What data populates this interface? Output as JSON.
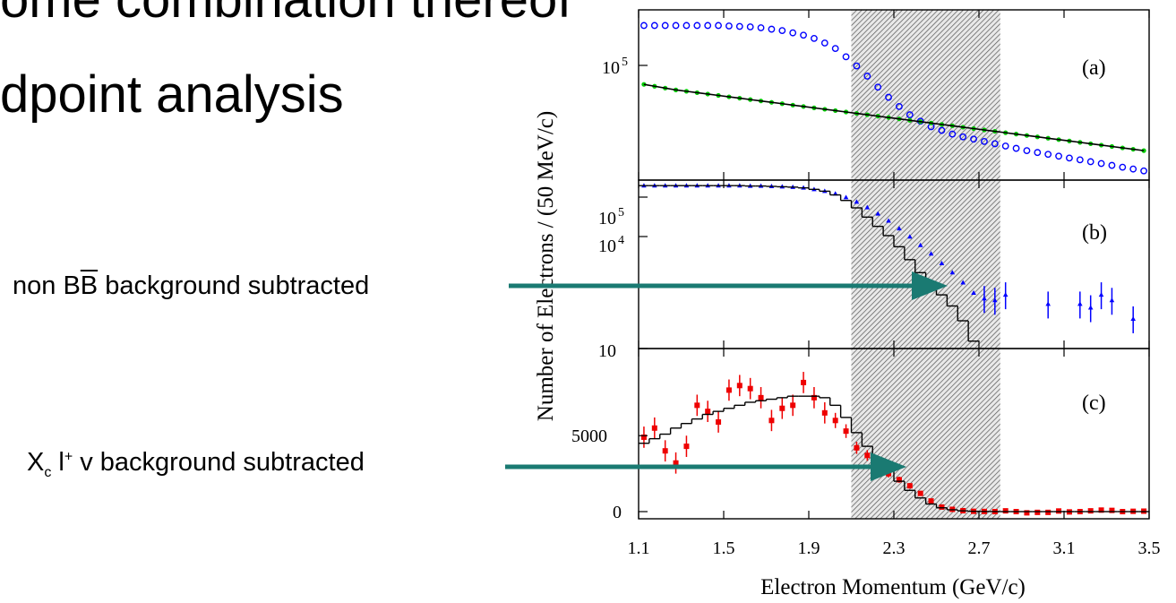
{
  "slide": {
    "title_top": "ome combination thereof",
    "title_main": "dpoint analysis",
    "arrow1": {
      "pre": "non B",
      "over": "B",
      "post": " background subtracted"
    },
    "arrow2": {
      "x": "X",
      "x_sub": "c",
      "l": " l",
      "l_sup": "+",
      "post": " v background subtracted"
    },
    "arrow_color": "#1a7a72"
  },
  "chart_data": [
    {
      "type": "scatter",
      "panel_label": "(a)",
      "yscale": "log",
      "ytick_labels": [
        "10^5"
      ],
      "shaded_region_x": [
        2.1,
        2.8
      ],
      "series": [
        {
          "color": "#0000ff",
          "marker": "open-circle",
          "x": [
            1.125,
            1.175,
            1.225,
            1.275,
            1.325,
            1.375,
            1.425,
            1.475,
            1.525,
            1.575,
            1.625,
            1.675,
            1.725,
            1.775,
            1.825,
            1.875,
            1.925,
            1.975,
            2.025,
            2.075,
            2.125,
            2.175,
            2.225,
            2.275,
            2.325,
            2.375,
            2.425,
            2.475,
            2.525,
            2.575,
            2.625,
            2.675,
            2.725,
            2.775,
            2.825,
            2.875,
            2.925,
            2.975,
            3.025,
            3.075,
            3.125,
            3.175,
            3.225,
            3.275,
            3.325,
            3.375,
            3.425,
            3.475
          ],
          "y": [
            5.68,
            5.68,
            5.68,
            5.68,
            5.68,
            5.68,
            5.68,
            5.68,
            5.675,
            5.67,
            5.665,
            5.655,
            5.64,
            5.625,
            5.6,
            5.575,
            5.54,
            5.49,
            5.43,
            5.34,
            5.24,
            5.13,
            5.01,
            4.9,
            4.8,
            4.71,
            4.64,
            4.58,
            4.54,
            4.5,
            4.47,
            4.445,
            4.42,
            4.395,
            4.37,
            4.345,
            4.32,
            4.3,
            4.28,
            4.26,
            4.24,
            4.22,
            4.2,
            4.18,
            4.16,
            4.14,
            4.12,
            4.1
          ]
        },
        {
          "color": "#00cc00",
          "marker": "dot",
          "x": [
            1.125,
            1.175,
            1.225,
            1.275,
            1.325,
            1.375,
            1.425,
            1.475,
            1.525,
            1.575,
            1.625,
            1.675,
            1.725,
            1.775,
            1.825,
            1.875,
            1.925,
            1.975,
            2.025,
            2.075,
            2.125,
            2.175,
            2.225,
            2.275,
            2.325,
            2.375,
            2.425,
            2.475,
            2.525,
            2.575,
            2.625,
            2.675,
            2.725,
            2.775,
            2.825,
            2.875,
            2.925,
            2.975,
            3.025,
            3.075,
            3.125,
            3.175,
            3.225,
            3.275,
            3.325,
            3.375,
            3.425,
            3.475
          ],
          "y": [
            5.04,
            5.02,
            5.0,
            4.98,
            4.965,
            4.95,
            4.935,
            4.92,
            4.905,
            4.89,
            4.875,
            4.86,
            4.845,
            4.83,
            4.815,
            4.8,
            4.785,
            4.77,
            4.755,
            4.74,
            4.725,
            4.71,
            4.695,
            4.68,
            4.665,
            4.65,
            4.635,
            4.62,
            4.605,
            4.59,
            4.575,
            4.56,
            4.545,
            4.53,
            4.515,
            4.5,
            4.485,
            4.47,
            4.455,
            4.44,
            4.425,
            4.41,
            4.395,
            4.38,
            4.365,
            4.35,
            4.335,
            4.32
          ]
        }
      ]
    },
    {
      "type": "scatter",
      "panel_label": "(b)",
      "yscale": "log",
      "ytick_labels": [
        "10",
        "10^4",
        "10^5"
      ],
      "series": [
        {
          "color": "#0000ff",
          "marker": "triangle-errorbar",
          "x": [
            1.125,
            1.175,
            1.225,
            1.275,
            1.325,
            1.375,
            1.425,
            1.475,
            1.525,
            1.575,
            1.625,
            1.675,
            1.725,
            1.775,
            1.825,
            1.875,
            1.925,
            1.975,
            2.025,
            2.075,
            2.125,
            2.175,
            2.225,
            2.275,
            2.325,
            2.375,
            2.425,
            2.475,
            2.525,
            2.575,
            2.625,
            2.675,
            2.725,
            2.775,
            2.825,
            3.025,
            3.175,
            3.225,
            3.275,
            3.325,
            3.425
          ],
          "y": [
            5.4,
            5.4,
            5.4,
            5.4,
            5.4,
            5.4,
            5.4,
            5.4,
            5.4,
            5.4,
            5.39,
            5.39,
            5.38,
            5.37,
            5.36,
            5.34,
            5.3,
            5.25,
            5.18,
            5.08,
            4.96,
            4.81,
            4.64,
            4.45,
            4.24,
            4.02,
            3.79,
            3.56,
            3.3,
            3.05,
            2.78,
            2.5,
            2.35,
            2.3,
            2.45,
            2.2,
            2.2,
            2.1,
            2.45,
            2.3,
            1.8
          ]
        },
        {
          "color": "#000000",
          "marker": "histogram",
          "x": [
            1.125,
            1.175,
            1.225,
            1.275,
            1.325,
            1.375,
            1.425,
            1.475,
            1.525,
            1.575,
            1.625,
            1.675,
            1.725,
            1.775,
            1.825,
            1.875,
            1.925,
            1.975,
            2.025,
            2.075,
            2.125,
            2.175,
            2.225,
            2.275,
            2.325,
            2.375,
            2.425,
            2.475,
            2.525,
            2.575,
            2.625,
            2.675
          ],
          "y": [
            5.4,
            5.4,
            5.4,
            5.4,
            5.4,
            5.4,
            5.4,
            5.4,
            5.4,
            5.4,
            5.39,
            5.39,
            5.38,
            5.37,
            5.36,
            5.34,
            5.3,
            5.25,
            5.15,
            5.0,
            4.8,
            4.55,
            4.3,
            4.05,
            3.75,
            3.4,
            3.05,
            2.75,
            2.45,
            2.15,
            1.75,
            1.2
          ]
        }
      ]
    },
    {
      "type": "scatter",
      "panel_label": "(c)",
      "yticks": [
        0,
        5000
      ],
      "series": [
        {
          "color": "#ee0000",
          "marker": "square-errorbar",
          "x": [
            1.125,
            1.175,
            1.225,
            1.275,
            1.325,
            1.375,
            1.425,
            1.475,
            1.525,
            1.575,
            1.625,
            1.675,
            1.725,
            1.775,
            1.825,
            1.875,
            1.925,
            1.975,
            2.025,
            2.075,
            2.125,
            2.175,
            2.225,
            2.275,
            2.325,
            2.375,
            2.425,
            2.475,
            2.525,
            2.575,
            2.625,
            2.675,
            2.725,
            2.775,
            2.825,
            2.875,
            2.925,
            2.975,
            3.025,
            3.075,
            3.125,
            3.175,
            3.225,
            3.275,
            3.325,
            3.375,
            3.425,
            3.475
          ],
          "y": [
            4900,
            5500,
            4000,
            3200,
            4300,
            7000,
            6600,
            5900,
            8000,
            8300,
            8100,
            7500,
            6000,
            6800,
            7000,
            8500,
            7500,
            6500,
            6000,
            5300,
            4200,
            3700,
            3000,
            2500,
            2100,
            1700,
            1200,
            700,
            300,
            150,
            60,
            20,
            10,
            0,
            50,
            0,
            -80,
            -50,
            -50,
            40,
            -20,
            0,
            50,
            100,
            80,
            0,
            20,
            30
          ],
          "yerr": [
            700,
            700,
            700,
            700,
            700,
            700,
            700,
            700,
            700,
            700,
            700,
            700,
            700,
            700,
            700,
            700,
            700,
            700,
            500,
            450,
            400,
            350,
            300,
            250,
            200,
            180,
            150,
            120,
            100,
            80,
            70,
            60,
            60,
            60,
            60,
            60,
            60,
            60,
            60,
            60,
            60,
            60,
            60,
            60,
            60,
            60,
            60,
            60
          ]
        },
        {
          "color": "#000000",
          "marker": "histogram",
          "x": [
            1.125,
            1.175,
            1.225,
            1.275,
            1.325,
            1.375,
            1.425,
            1.475,
            1.525,
            1.575,
            1.625,
            1.675,
            1.725,
            1.775,
            1.825,
            1.875,
            1.925,
            1.975,
            2.025,
            2.075,
            2.125,
            2.175,
            2.225,
            2.275,
            2.325,
            2.375,
            2.425,
            2.475,
            2.525,
            2.575,
            2.625,
            2.675,
            2.725,
            2.775,
            2.825,
            2.875,
            2.925,
            2.975,
            3.025,
            3.075,
            3.125,
            3.175,
            3.225,
            3.275,
            3.325,
            3.375,
            3.425,
            3.475
          ],
          "y": [
            4500,
            4800,
            5100,
            5500,
            5800,
            6100,
            6400,
            6600,
            6800,
            7000,
            7200,
            7300,
            7400,
            7500,
            7600,
            7600,
            7600,
            7500,
            7000,
            6200,
            5200,
            4300,
            3500,
            2700,
            2000,
            1400,
            900,
            500,
            250,
            120,
            50,
            20,
            10,
            5,
            0,
            0,
            0,
            0,
            0,
            0,
            0,
            0,
            0,
            0,
            0,
            0,
            0,
            0
          ]
        }
      ]
    }
  ],
  "axes": {
    "xlabel": "Electron Momentum (GeV/c)",
    "ylabel": "Number of Electrons / (50 MeV/c)",
    "xticks": [
      1.1,
      1.5,
      1.9,
      2.3,
      2.7,
      3.1,
      3.5
    ],
    "xlim": [
      1.1,
      3.5
    ]
  }
}
